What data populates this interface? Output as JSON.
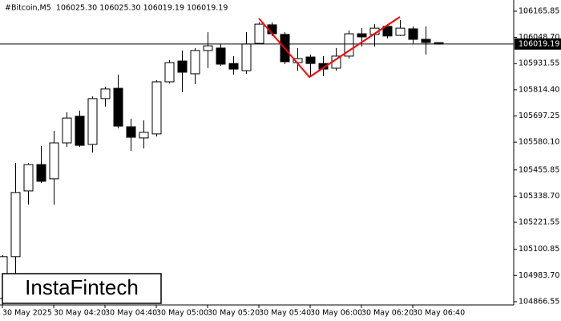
{
  "chart_data": {
    "type": "candlestick",
    "title": "#Bitcoin,M5  106025.30 106025.30 106019.19 106019.19",
    "watermark": "InstaFintech",
    "categories": [
      "30 May 2025",
      null,
      null,
      null,
      "30 May 04:20",
      null,
      null,
      null,
      "30 May 04:40",
      null,
      null,
      null,
      "30 May 05:00",
      null,
      null,
      null,
      "30 May 05:20",
      null,
      null,
      null,
      "30 May 05:40",
      null,
      null,
      null,
      "30 May 06:00",
      null,
      null,
      null,
      "30 May 06:20",
      null,
      null,
      null,
      "30 May 06:40",
      null,
      null
    ],
    "open": [
      104881,
      105068,
      105362,
      105480,
      105416,
      105577,
      105696,
      105570,
      105775,
      105821,
      105649,
      105599,
      105617,
      105850,
      105943,
      105886,
      105990,
      106001,
      105932,
      105900,
      106022,
      106105,
      106062,
      105936,
      105961,
      105932,
      105911,
      105965,
      106065,
      106062,
      106098,
      106058,
      106087,
      106040,
      106025.3
    ],
    "high": [
      105075,
      105487,
      105487,
      105563,
      105631,
      105714,
      105721,
      105785,
      105828,
      105882,
      105685,
      105678,
      105857,
      105947,
      105990,
      106001,
      106072,
      106019,
      105965,
      106072,
      106116,
      106116,
      106072,
      106001,
      105972,
      105965,
      106001,
      106080,
      106090,
      106108,
      106108,
      106126,
      106098,
      106098,
      106025.3
    ],
    "low": [
      104852,
      104978,
      105301,
      105398,
      105301,
      105559,
      105559,
      105534,
      105739,
      105642,
      105541,
      105552,
      105606,
      105843,
      105803,
      105839,
      105911,
      105922,
      105882,
      105886,
      106019,
      106055,
      105929,
      105900,
      105875,
      105875,
      105900,
      105954,
      106008,
      106008,
      106044,
      106055,
      106019,
      105972,
      106019.19
    ],
    "close": [
      105068,
      105355,
      105480,
      105405,
      105577,
      105688,
      105566,
      105775,
      105818,
      105652,
      105602,
      105624,
      105850,
      105936,
      105893,
      105990,
      106011,
      105929,
      105907,
      106019,
      106108,
      106065,
      105940,
      105954,
      105932,
      105907,
      105965,
      106065,
      106051,
      106090,
      106055,
      106090,
      106040,
      106026,
      106019.19
    ],
    "up_color": "#ffffff",
    "down_color": "#000000",
    "line_color": "#000000",
    "current_price": 106019.19,
    "pattern_color": "#ff0000",
    "ylim": [
      104852,
      106216
    ],
    "yticks": [
      106165.85,
      {
        "value": 106048.7,
        "label": "106048.70"
      },
      105931.55,
      {
        "value": 105814.4,
        "label": "105814.40"
      },
      105697.25,
      {
        "value": 105580.1,
        "label": "105580.10"
      },
      105455.85,
      {
        "value": 105338.7,
        "label": "105338.70"
      },
      105221.55,
      105100.85,
      {
        "value": 104983.7,
        "label": "104983.70"
      },
      104866.55
    ]
  }
}
